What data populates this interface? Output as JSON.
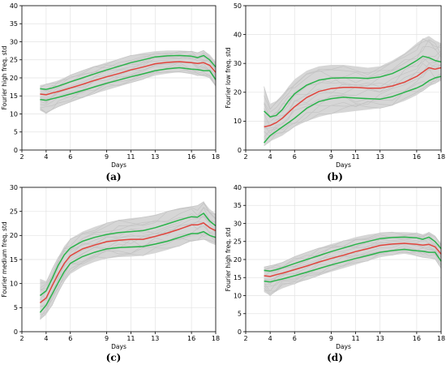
{
  "chart_data": [
    {
      "panel": "(a)",
      "type": "line",
      "xlabel": "Days",
      "ylabel": "Fourier high freq. std",
      "xlim": [
        2,
        18
      ],
      "ylim": [
        0,
        40
      ],
      "xticks": [
        2,
        4,
        6,
        9,
        11,
        13,
        16,
        18
      ],
      "yticks": [
        0,
        5,
        10,
        15,
        20,
        25,
        30,
        35,
        40
      ],
      "grid": true,
      "x": [
        3.5,
        4,
        4.5,
        5,
        6,
        7,
        8,
        9,
        10,
        11,
        12,
        13,
        14,
        15,
        16,
        16.5,
        17,
        17.5,
        18
      ],
      "series": [
        {
          "role": "mean",
          "color": "#e0443c",
          "values": [
            15.5,
            15.3,
            15.8,
            16.2,
            17.2,
            18.2,
            19.3,
            20.3,
            21.2,
            22.2,
            23.0,
            23.9,
            24.3,
            24.5,
            24.2,
            24.0,
            24.2,
            23.5,
            21.5
          ]
        },
        {
          "role": "upper",
          "color": "#2ab34a",
          "values": [
            17.0,
            16.8,
            17.2,
            17.7,
            18.9,
            20.0,
            21.1,
            22.2,
            23.2,
            24.2,
            25.0,
            25.8,
            26.1,
            26.2,
            26.0,
            25.6,
            26.2,
            25.0,
            23.0
          ]
        },
        {
          "role": "lower",
          "color": "#2ab34a",
          "values": [
            14.0,
            13.8,
            14.2,
            14.6,
            15.5,
            16.5,
            17.5,
            18.5,
            19.4,
            20.3,
            21.1,
            22.0,
            22.5,
            22.8,
            22.4,
            22.3,
            22.0,
            22.0,
            19.5
          ]
        }
      ],
      "band": {
        "color": "#c4c4c4",
        "lower": [
          11.0,
          10.0,
          11.2,
          12.0,
          13.2,
          14.4,
          15.6,
          16.6,
          17.6,
          18.6,
          19.6,
          20.6,
          21.2,
          21.6,
          21.0,
          20.6,
          20.4,
          20.0,
          17.5
        ],
        "upper": [
          18.0,
          18.3,
          18.8,
          19.3,
          20.8,
          22.0,
          23.2,
          24.3,
          25.2,
          26.2,
          26.9,
          27.4,
          27.6,
          27.6,
          27.4,
          27.0,
          27.6,
          26.5,
          24.5
        ]
      }
    },
    {
      "panel": "(b)",
      "type": "line",
      "xlabel": "Days",
      "ylabel": "Fourier low freq. std",
      "xlim": [
        2,
        18
      ],
      "ylim": [
        0,
        50
      ],
      "xticks": [
        2,
        4,
        6,
        9,
        11,
        13,
        16,
        18
      ],
      "yticks": [
        0,
        10,
        20,
        30,
        40,
        50
      ],
      "grid": true,
      "x": [
        3.5,
        4,
        4.5,
        5,
        5.5,
        6,
        7,
        8,
        9,
        10,
        11,
        12,
        13,
        14,
        15,
        16,
        16.5,
        17,
        17.5,
        18
      ],
      "series": [
        {
          "role": "mean",
          "color": "#e0443c",
          "values": [
            8.0,
            8.5,
            9.5,
            11.0,
            13.0,
            15.0,
            18.2,
            20.3,
            21.3,
            21.7,
            21.7,
            21.4,
            21.4,
            22.2,
            23.5,
            25.5,
            27.0,
            28.5,
            28.0,
            28.5
          ]
        },
        {
          "role": "upper",
          "color": "#2ab34a",
          "values": [
            13.5,
            11.5,
            12.0,
            14.0,
            17.0,
            19.5,
            22.5,
            24.2,
            24.9,
            25.0,
            25.0,
            24.8,
            25.3,
            26.5,
            28.5,
            31.0,
            32.5,
            32.0,
            31.0,
            30.5
          ]
        },
        {
          "role": "lower",
          "color": "#2ab34a",
          "values": [
            2.5,
            5.0,
            6.5,
            8.0,
            9.5,
            11.0,
            14.5,
            16.8,
            17.8,
            18.3,
            18.0,
            17.8,
            17.6,
            18.5,
            20.0,
            21.5,
            22.5,
            24.0,
            25.0,
            25.5
          ]
        }
      ],
      "band": {
        "color": "#c4c4c4",
        "lower": [
          1.5,
          3.0,
          4.0,
          5.0,
          6.5,
          8.0,
          10.0,
          11.5,
          12.5,
          13.0,
          13.5,
          14.0,
          14.5,
          15.5,
          17.0,
          19.0,
          20.5,
          22.0,
          23.0,
          24.0
        ],
        "upper": [
          22.0,
          16.0,
          17.0,
          19.0,
          22.0,
          24.5,
          27.5,
          29.0,
          29.5,
          29.5,
          29.0,
          28.5,
          29.0,
          31.0,
          33.5,
          37.0,
          38.5,
          39.5,
          38.0,
          37.0
        ]
      }
    },
    {
      "panel": "(c)",
      "type": "line",
      "xlabel": "Days",
      "ylabel": "Fourier medium freq. std",
      "xlim": [
        2,
        18
      ],
      "ylim": [
        0,
        30
      ],
      "xticks": [
        2,
        4,
        6,
        9,
        11,
        13,
        16,
        18
      ],
      "yticks": [
        0,
        5,
        10,
        15,
        20,
        25,
        30
      ],
      "grid": true,
      "x": [
        3.5,
        4,
        4.5,
        5,
        5.5,
        6,
        7,
        8,
        9,
        10,
        11,
        12,
        13,
        14,
        15,
        16,
        16.5,
        17,
        17.5,
        18
      ],
      "series": [
        {
          "role": "mean",
          "color": "#e0443c",
          "values": [
            6.0,
            7.0,
            9.5,
            12.0,
            14.2,
            15.8,
            17.2,
            18.0,
            18.7,
            19.0,
            19.2,
            19.2,
            19.8,
            20.5,
            21.3,
            22.2,
            22.2,
            22.6,
            21.6,
            21.0
          ]
        },
        {
          "role": "upper",
          "color": "#2ab34a",
          "values": [
            7.5,
            8.5,
            11.0,
            13.8,
            16.0,
            17.4,
            18.8,
            19.6,
            20.2,
            20.6,
            20.8,
            21.0,
            21.6,
            22.4,
            23.2,
            23.9,
            23.8,
            24.6,
            23.0,
            22.0
          ]
        },
        {
          "role": "lower",
          "color": "#2ab34a",
          "values": [
            4.0,
            5.5,
            7.8,
            10.2,
            12.5,
            14.2,
            15.6,
            16.5,
            17.2,
            17.5,
            17.6,
            17.7,
            18.2,
            18.8,
            19.6,
            20.4,
            20.4,
            20.8,
            20.0,
            19.6
          ]
        }
      ],
      "band": {
        "color": "#c4c4c4",
        "lower": [
          2.5,
          3.5,
          5.5,
          8.0,
          10.5,
          12.0,
          13.5,
          14.5,
          15.2,
          15.5,
          15.6,
          15.8,
          16.3,
          17.0,
          17.8,
          18.8,
          19.0,
          19.2,
          18.5,
          18.0
        ],
        "upper": [
          11.0,
          10.5,
          13.0,
          15.5,
          17.8,
          19.3,
          20.8,
          21.8,
          22.6,
          23.2,
          23.6,
          23.8,
          24.3,
          25.0,
          25.6,
          26.0,
          26.2,
          27.0,
          25.5,
          24.5
        ]
      }
    },
    {
      "panel": "(d)",
      "type": "line",
      "xlabel": "Days",
      "ylabel": "Fourier high freq. std",
      "xlim": [
        2,
        18
      ],
      "ylim": [
        0,
        40
      ],
      "xticks": [
        2,
        4,
        6,
        9,
        11,
        13,
        16,
        18
      ],
      "yticks": [
        0,
        5,
        10,
        15,
        20,
        25,
        30,
        35,
        40
      ],
      "grid": true,
      "x": [
        3.5,
        4,
        4.5,
        5,
        6,
        7,
        8,
        9,
        10,
        11,
        12,
        13,
        14,
        15,
        16,
        16.5,
        17,
        17.5,
        18
      ],
      "series": [
        {
          "role": "mean",
          "color": "#e0443c",
          "values": [
            15.5,
            15.3,
            15.8,
            16.2,
            17.2,
            18.2,
            19.3,
            20.3,
            21.2,
            22.2,
            23.0,
            23.9,
            24.3,
            24.5,
            24.2,
            24.0,
            24.2,
            23.5,
            21.5
          ]
        },
        {
          "role": "upper",
          "color": "#2ab34a",
          "values": [
            17.0,
            16.8,
            17.2,
            17.7,
            18.9,
            20.0,
            21.1,
            22.2,
            23.2,
            24.2,
            25.0,
            25.8,
            26.1,
            26.2,
            26.0,
            25.6,
            26.2,
            25.0,
            23.0
          ]
        },
        {
          "role": "lower",
          "color": "#2ab34a",
          "values": [
            14.0,
            13.8,
            14.2,
            14.6,
            15.5,
            16.5,
            17.5,
            18.5,
            19.4,
            20.3,
            21.1,
            22.0,
            22.5,
            22.8,
            22.4,
            22.3,
            22.0,
            22.0,
            19.5
          ]
        }
      ],
      "band": {
        "color": "#c4c4c4",
        "lower": [
          11.0,
          10.0,
          11.2,
          12.0,
          13.2,
          14.4,
          15.6,
          16.6,
          17.6,
          18.6,
          19.6,
          20.6,
          21.2,
          21.6,
          21.0,
          20.6,
          20.4,
          20.0,
          17.5
        ],
        "upper": [
          18.0,
          18.3,
          18.8,
          19.3,
          20.8,
          22.0,
          23.2,
          24.3,
          25.2,
          26.2,
          26.9,
          27.4,
          27.6,
          27.6,
          27.4,
          27.0,
          27.6,
          26.5,
          24.5
        ]
      }
    }
  ]
}
